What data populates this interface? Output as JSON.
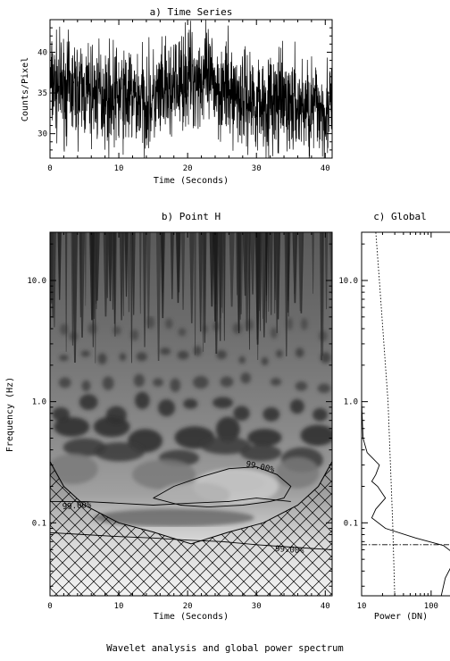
{
  "caption": "Wavelet analysis and global power spectrum",
  "colors": {
    "ink": "#000000",
    "background": "#ffffff"
  },
  "chart_data": [
    {
      "id": "a",
      "type": "line",
      "title": "a) Time Series",
      "xlabel": "Time (Seconds)",
      "ylabel": "Counts/Pixel",
      "xlim": [
        0,
        41
      ],
      "ylim": [
        27,
        44
      ],
      "xticks": [
        0,
        10,
        20,
        30,
        40
      ],
      "yticks": [
        30,
        35,
        40
      ],
      "series": [
        {
          "mean_profile": [
            {
              "x": 0,
              "y": 36
            },
            {
              "x": 5,
              "y": 35
            },
            {
              "x": 10,
              "y": 34.5
            },
            {
              "x": 15,
              "y": 34
            },
            {
              "x": 18,
              "y": 35.5
            },
            {
              "x": 20,
              "y": 37
            },
            {
              "x": 23,
              "y": 36.5
            },
            {
              "x": 26,
              "y": 35
            },
            {
              "x": 30,
              "y": 34
            },
            {
              "x": 35,
              "y": 33.5
            },
            {
              "x": 41,
              "y": 33
            }
          ],
          "noise_amplitude": 3
        }
      ]
    },
    {
      "id": "b",
      "type": "heatmap",
      "title": "b) Point H",
      "xlabel": "Time (Seconds)",
      "ylabel": "Frequency (Hz)",
      "xlim": [
        0,
        41
      ],
      "ylim": [
        0.025,
        25
      ],
      "y_scale": "log",
      "xticks": [
        0,
        10,
        20,
        30,
        40
      ],
      "yticks": [
        {
          "value": 10,
          "label": "10.0"
        },
        {
          "value": 1,
          "label": "1.0"
        },
        {
          "value": 0.1,
          "label": "0.1"
        }
      ],
      "cone_of_influence": [
        {
          "x": 0,
          "y": 0.32
        },
        {
          "x": 2,
          "y": 0.2
        },
        {
          "x": 5,
          "y": 0.14
        },
        {
          "x": 10,
          "y": 0.1
        },
        {
          "x": 15,
          "y": 0.084
        },
        {
          "x": 20.5,
          "y": 0.067
        },
        {
          "x": 26,
          "y": 0.084
        },
        {
          "x": 31,
          "y": 0.1
        },
        {
          "x": 36,
          "y": 0.14
        },
        {
          "x": 39,
          "y": 0.2
        },
        {
          "x": 41,
          "y": 0.32
        }
      ],
      "contours": [
        {
          "label": "99.00%",
          "points": [
            {
              "x": 15,
              "y": 0.16
            },
            {
              "x": 18,
              "y": 0.2
            },
            {
              "x": 22,
              "y": 0.24
            },
            {
              "x": 26,
              "y": 0.28
            },
            {
              "x": 30,
              "y": 0.29
            },
            {
              "x": 33,
              "y": 0.25
            },
            {
              "x": 35,
              "y": 0.2
            },
            {
              "x": 34,
              "y": 0.16
            },
            {
              "x": 32,
              "y": 0.15
            },
            {
              "x": 28,
              "y": 0.14
            },
            {
              "x": 23,
              "y": 0.135
            },
            {
              "x": 19,
              "y": 0.14
            },
            {
              "x": 15,
              "y": 0.16
            }
          ]
        },
        {
          "label": "99.00%",
          "points": [
            {
              "x": 0,
              "y": 0.15
            },
            {
              "x": 5,
              "y": 0.15
            },
            {
              "x": 10,
              "y": 0.145
            },
            {
              "x": 15,
              "y": 0.14
            },
            {
              "x": 20,
              "y": 0.145
            },
            {
              "x": 26,
              "y": 0.15
            },
            {
              "x": 30,
              "y": 0.16
            },
            {
              "x": 35,
              "y": 0.15
            }
          ]
        },
        {
          "label": "99.00%",
          "points": [
            {
              "x": 0,
              "y": 0.083
            },
            {
              "x": 5,
              "y": 0.08
            },
            {
              "x": 10,
              "y": 0.077
            },
            {
              "x": 15,
              "y": 0.075
            },
            {
              "x": 20,
              "y": 0.072
            },
            {
              "x": 25,
              "y": 0.07
            },
            {
              "x": 30,
              "y": 0.066
            },
            {
              "x": 35,
              "y": 0.063
            },
            {
              "x": 41,
              "y": 0.06
            }
          ]
        }
      ],
      "contour_labels": [
        "99.00%",
        "99.00%",
        "99.00%"
      ]
    },
    {
      "id": "c",
      "type": "line",
      "title": "c) Global",
      "xlabel": "Power (DN)",
      "x_scale": "log",
      "y_scale": "log",
      "xlim": [
        10,
        300
      ],
      "ylim": [
        0.025,
        25
      ],
      "xticks": [
        {
          "value": 10,
          "label": "10"
        },
        {
          "value": 100,
          "label": "100"
        }
      ],
      "yticks": [
        {
          "value": 10,
          "label": "10.0"
        },
        {
          "value": 1,
          "label": "1.0"
        },
        {
          "value": 0.1,
          "label": "0.1"
        }
      ],
      "series": [
        {
          "style": "solid",
          "points": [
            {
              "x": 10,
              "y": 25
            },
            {
              "x": 10,
              "y": 1
            },
            {
              "x": 10.5,
              "y": 0.5
            },
            {
              "x": 12,
              "y": 0.38
            },
            {
              "x": 18,
              "y": 0.3
            },
            {
              "x": 16,
              "y": 0.25
            },
            {
              "x": 14,
              "y": 0.22
            },
            {
              "x": 17,
              "y": 0.2
            },
            {
              "x": 22,
              "y": 0.16
            },
            {
              "x": 16,
              "y": 0.13
            },
            {
              "x": 14,
              "y": 0.11
            },
            {
              "x": 22,
              "y": 0.09
            },
            {
              "x": 60,
              "y": 0.075
            },
            {
              "x": 150,
              "y": 0.065
            },
            {
              "x": 220,
              "y": 0.055
            },
            {
              "x": 200,
              "y": 0.045
            },
            {
              "x": 160,
              "y": 0.035
            },
            {
              "x": 140,
              "y": 0.025
            }
          ]
        },
        {
          "style": "dotted",
          "points": [
            {
              "x": 30,
              "y": 0.025
            },
            {
              "x": 28,
              "y": 0.1
            },
            {
              "x": 24,
              "y": 1
            },
            {
              "x": 18,
              "y": 10
            },
            {
              "x": 16,
              "y": 25
            }
          ]
        }
      ],
      "reference_line": {
        "style": "dash-dot",
        "y": 0.066
      }
    }
  ]
}
